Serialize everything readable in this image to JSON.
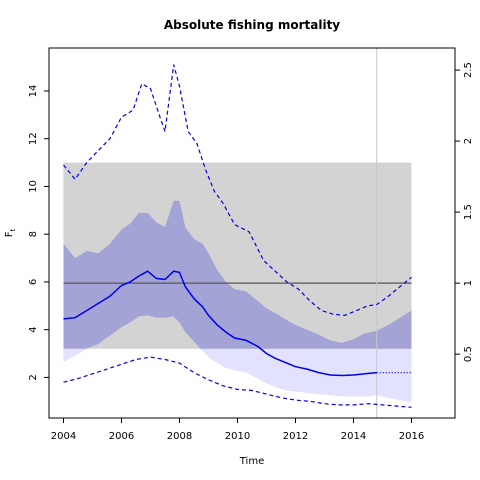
{
  "chart_data": {
    "type": "line",
    "title": "Absolute fishing mortality",
    "xlabel": "Time",
    "ylabel": "F",
    "ylabel_sub": "t",
    "xlim": [
      2003.5,
      2017.5
    ],
    "ylim": [
      0.3,
      15.8
    ],
    "xticks": [
      2004,
      2006,
      2008,
      2010,
      2012,
      2014,
      2016
    ],
    "xtick_labels": [
      "2004",
      "2006",
      "2008",
      "2010",
      "2012",
      "2014",
      "2016"
    ],
    "yticks": [
      2,
      4,
      6,
      8,
      10,
      12,
      14
    ],
    "ytick_labels": [
      "2",
      "4",
      "6",
      "8",
      "10",
      "12",
      "14"
    ],
    "right_axis": {
      "values": [
        0.5,
        1,
        1.5,
        2,
        2.5
      ],
      "labels": [
        "0.5",
        "1",
        "1.5",
        "2",
        "2.5"
      ],
      "scale_factor": 5.95
    },
    "grid": false,
    "reference_box": {
      "x": [
        2004,
        2016
      ],
      "y": [
        3.2,
        11.0
      ],
      "color": "#d3d3d3"
    },
    "reference_line": {
      "y": 5.95,
      "color": "#555555"
    },
    "vertical_line": {
      "x": 2014.8,
      "color": "#c8c8c8"
    },
    "upper_band_color": "#a3a3d6",
    "lower_band_color": "#e2e2fe",
    "estimate_color": "#0000ee",
    "series": [
      {
        "role": "estimate",
        "x": [
          2004,
          2004.4,
          2004.8,
          2005.2,
          2005.6,
          2006,
          2006.3,
          2006.6,
          2006.9,
          2007.2,
          2007.5,
          2007.8,
          2008,
          2008.2,
          2008.5,
          2008.8,
          2009,
          2009.3,
          2009.6,
          2009.9,
          2010.3,
          2010.7,
          2011,
          2011.3,
          2011.7,
          2012,
          2012.4,
          2012.8,
          2013.2,
          2013.6,
          2014,
          2014.4,
          2014.8
        ],
        "values": [
          4.45,
          4.5,
          4.8,
          5.1,
          5.4,
          5.85,
          6.0,
          6.25,
          6.45,
          6.15,
          6.1,
          6.45,
          6.4,
          5.8,
          5.3,
          4.95,
          4.6,
          4.2,
          3.9,
          3.65,
          3.55,
          3.3,
          3.0,
          2.8,
          2.6,
          2.45,
          2.35,
          2.2,
          2.1,
          2.08,
          2.1,
          2.15,
          2.2
        ]
      },
      {
        "role": "projection",
        "x": [
          2014.8,
          2016
        ],
        "values": [
          2.2,
          2.2
        ]
      },
      {
        "role": "upper_ci",
        "x": [
          2004,
          2004.4,
          2004.8,
          2005.2,
          2005.6,
          2006,
          2006.3,
          2006.6,
          2006.9,
          2007.2,
          2007.5,
          2007.8,
          2008,
          2008.2,
          2008.5,
          2008.8,
          2009,
          2009.3,
          2009.6,
          2009.9,
          2010.3,
          2010.7,
          2011,
          2011.3,
          2011.7,
          2012,
          2012.4,
          2012.8,
          2013.2,
          2013.6,
          2014,
          2014.4,
          2014.8,
          2015.2,
          2015.6,
          2016
        ],
        "values": [
          7.6,
          7.0,
          7.3,
          7.2,
          7.6,
          8.2,
          8.45,
          8.9,
          8.9,
          8.5,
          8.3,
          9.4,
          9.4,
          8.3,
          7.8,
          7.6,
          7.2,
          6.5,
          6.0,
          5.7,
          5.6,
          5.2,
          4.9,
          4.7,
          4.4,
          4.2,
          4.0,
          3.8,
          3.55,
          3.45,
          3.6,
          3.85,
          3.95,
          4.2,
          4.5,
          4.8
        ]
      },
      {
        "role": "lower_ci",
        "x": [
          2004,
          2004.4,
          2004.8,
          2005.2,
          2005.6,
          2006,
          2006.3,
          2006.6,
          2006.9,
          2007.2,
          2007.5,
          2007.8,
          2008,
          2008.2,
          2008.5,
          2008.8,
          2009,
          2009.3,
          2009.6,
          2009.9,
          2010.3,
          2010.7,
          2011,
          2011.3,
          2011.7,
          2012,
          2012.4,
          2012.8,
          2013.2,
          2013.6,
          2014,
          2014.4,
          2014.8,
          2015.2,
          2015.6,
          2016
        ],
        "values": [
          2.65,
          2.9,
          3.2,
          3.4,
          3.75,
          4.1,
          4.3,
          4.55,
          4.6,
          4.5,
          4.5,
          4.55,
          4.3,
          3.9,
          3.5,
          3.1,
          2.85,
          2.6,
          2.4,
          2.3,
          2.2,
          1.95,
          1.75,
          1.6,
          1.45,
          1.4,
          1.35,
          1.3,
          1.25,
          1.2,
          1.2,
          1.2,
          1.25,
          1.15,
          1.05,
          0.95
        ]
      },
      {
        "role": "upper_bound",
        "x": [
          2004,
          2004.4,
          2004.8,
          2005.2,
          2005.6,
          2006,
          2006.4,
          2006.7,
          2007,
          2007.3,
          2007.5,
          2007.8,
          2008,
          2008.3,
          2008.6,
          2008.9,
          2009.2,
          2009.5,
          2009.9,
          2010.4,
          2010.9,
          2011.3,
          2011.7,
          2012.1,
          2012.5,
          2012.9,
          2013.3,
          2013.7,
          2014.1,
          2014.5,
          2014.8,
          2015.2,
          2015.6,
          2016
        ],
        "values": [
          10.9,
          10.3,
          11.0,
          11.5,
          12.0,
          12.9,
          13.2,
          14.3,
          14.1,
          13.0,
          12.3,
          15.1,
          14.2,
          12.3,
          11.8,
          10.7,
          9.8,
          9.3,
          8.4,
          8.1,
          6.9,
          6.45,
          6.0,
          5.7,
          5.2,
          4.8,
          4.65,
          4.6,
          4.8,
          5.0,
          5.05,
          5.4,
          5.8,
          6.2
        ]
      },
      {
        "role": "lower_bound",
        "x": [
          2004,
          2004.5,
          2005,
          2005.5,
          2006,
          2006.5,
          2007,
          2007.5,
          2008,
          2008.5,
          2009,
          2009.5,
          2010,
          2010.5,
          2011,
          2011.5,
          2012,
          2012.5,
          2013,
          2013.5,
          2014,
          2014.5,
          2015,
          2015.5,
          2016
        ],
        "values": [
          1.8,
          1.95,
          2.15,
          2.35,
          2.55,
          2.75,
          2.85,
          2.75,
          2.6,
          2.2,
          1.9,
          1.65,
          1.5,
          1.45,
          1.3,
          1.15,
          1.05,
          1.0,
          0.9,
          0.85,
          0.85,
          0.9,
          0.85,
          0.8,
          0.75
        ]
      }
    ]
  }
}
